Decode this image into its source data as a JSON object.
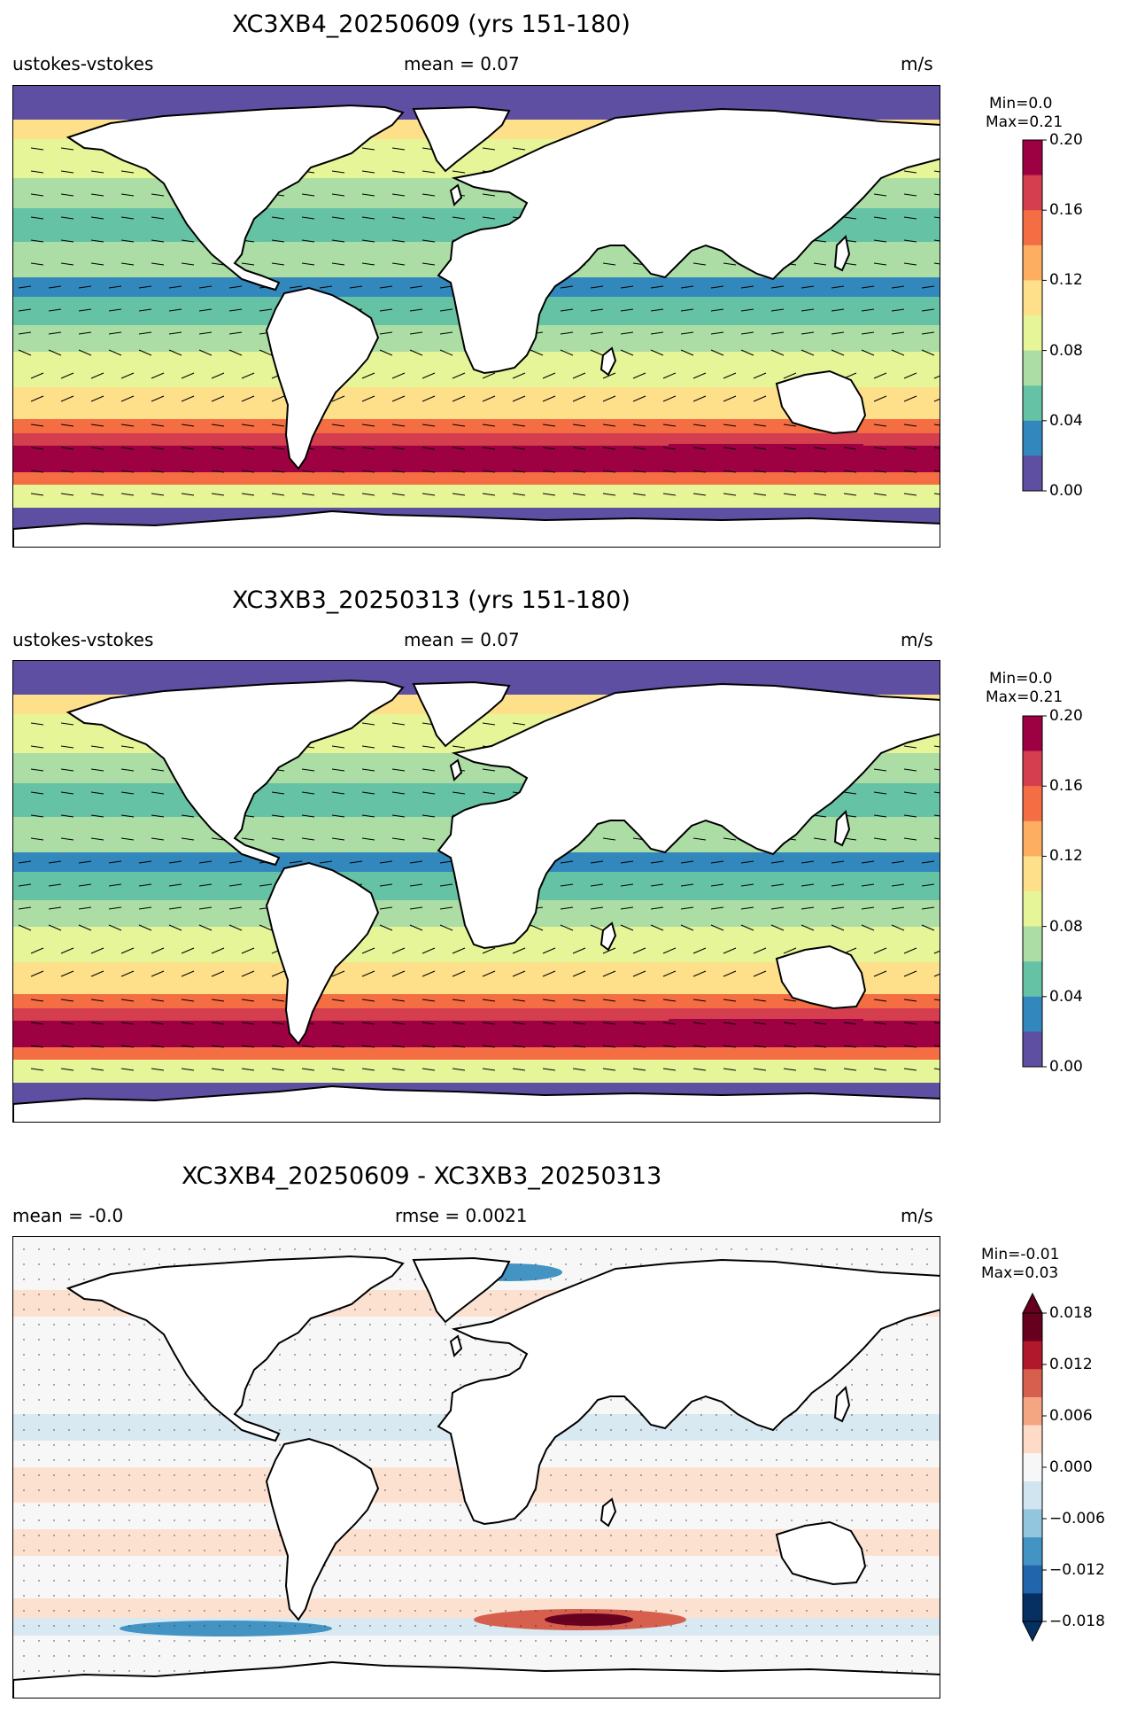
{
  "units": "m/s",
  "panels": [
    {
      "title": "XC3XB4_20250609 (yrs 151-180)",
      "left_label": "ustokes-vstokes",
      "center_label": "mean = 0.07",
      "right_label": "m/s",
      "range_min": "Min=0.0",
      "range_max": "Max=0.21",
      "colorbar_ticks": [
        "0.20",
        "0.16",
        "0.12",
        "0.08",
        "0.04",
        "0.00"
      ]
    },
    {
      "title": "XC3XB3_20250313 (yrs 151-180)",
      "left_label": "ustokes-vstokes",
      "center_label": "mean = 0.07",
      "right_label": "m/s",
      "range_min": "Min=0.0",
      "range_max": "Max=0.21",
      "colorbar_ticks": [
        "0.20",
        "0.16",
        "0.12",
        "0.08",
        "0.04",
        "0.00"
      ]
    },
    {
      "title": "XC3XB4_20250609 - XC3XB3_20250313",
      "left_label": "mean = -0.0",
      "center_label": "rmse = 0.0021",
      "right_label": "m/s",
      "range_min": "Min=-0.01",
      "range_max": "Max=0.03",
      "colorbar_ticks": [
        "0.018",
        "0.012",
        "0.006",
        "0.000",
        "−0.006",
        "−0.012",
        "−0.018"
      ]
    }
  ],
  "colors": {
    "speed_scale": [
      "#5e4fa2",
      "#3288bd",
      "#66c2a5",
      "#abdda4",
      "#e6f598",
      "#fee08b",
      "#fdae61",
      "#f46d43",
      "#d53e4f",
      "#9e0142"
    ],
    "diff_scale": [
      "#053061",
      "#2166ac",
      "#4393c3",
      "#92c5de",
      "#d1e5f0",
      "#f7f7f7",
      "#fddbc7",
      "#f4a582",
      "#d6604d",
      "#b2182b",
      "#67001f"
    ],
    "land": "#ffffff",
    "coastline": "#000000"
  }
}
